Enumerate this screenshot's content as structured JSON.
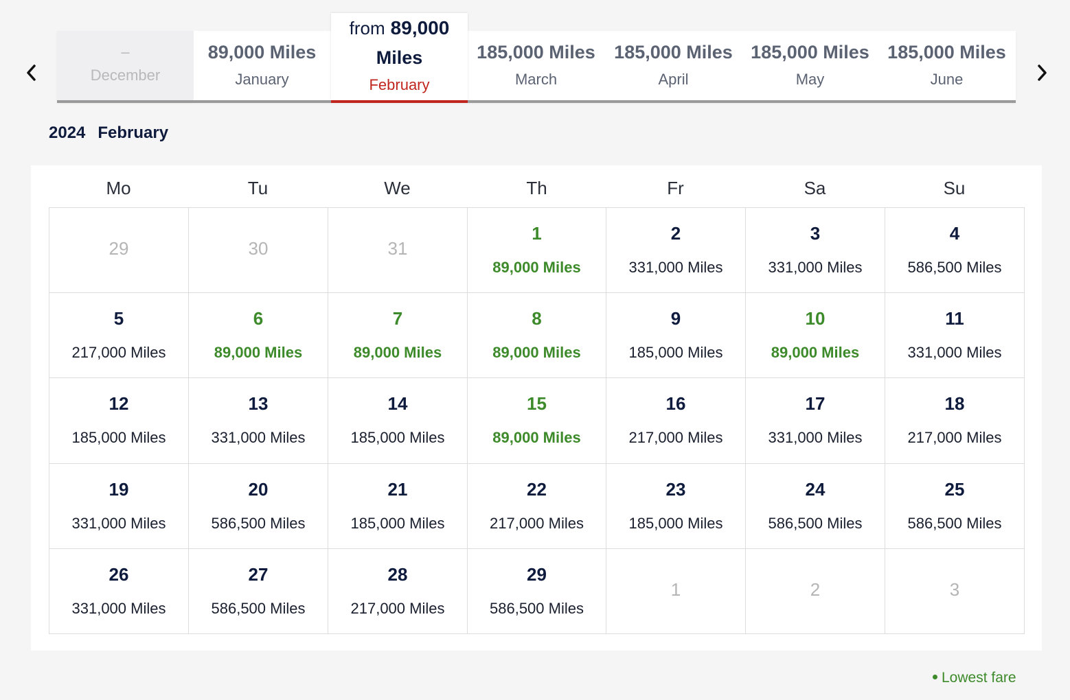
{
  "carousel": {
    "prev_icon": "chevron-left-icon",
    "next_icon": "chevron-right-icon",
    "months": [
      {
        "price": "–",
        "month": "December",
        "state": "disabled"
      },
      {
        "price": "89,000 Miles",
        "month": "January",
        "state": "normal"
      },
      {
        "prefix": "from",
        "price": "89,000",
        "unit": "Miles",
        "month": "February",
        "state": "selected"
      },
      {
        "price": "185,000 Miles",
        "month": "March",
        "state": "normal"
      },
      {
        "price": "185,000 Miles",
        "month": "April",
        "state": "normal"
      },
      {
        "price": "185,000 Miles",
        "month": "May",
        "state": "normal"
      },
      {
        "price": "185,000 Miles",
        "month": "June",
        "state": "normal"
      }
    ]
  },
  "heading": {
    "year": "2024",
    "month": "February"
  },
  "weekdays": [
    "Mo",
    "Tu",
    "We",
    "Th",
    "Fr",
    "Sa",
    "Su"
  ],
  "weeks": [
    [
      {
        "day": "29",
        "outside": true
      },
      {
        "day": "30",
        "outside": true
      },
      {
        "day": "31",
        "outside": true
      },
      {
        "day": "1",
        "fare": "89,000 Miles",
        "lowest": true
      },
      {
        "day": "2",
        "fare": "331,000 Miles"
      },
      {
        "day": "3",
        "fare": "331,000 Miles"
      },
      {
        "day": "4",
        "fare": "586,500 Miles"
      }
    ],
    [
      {
        "day": "5",
        "fare": "217,000 Miles"
      },
      {
        "day": "6",
        "fare": "89,000 Miles",
        "lowest": true
      },
      {
        "day": "7",
        "fare": "89,000 Miles",
        "lowest": true
      },
      {
        "day": "8",
        "fare": "89,000 Miles",
        "lowest": true
      },
      {
        "day": "9",
        "fare": "185,000 Miles"
      },
      {
        "day": "10",
        "fare": "89,000 Miles",
        "lowest": true
      },
      {
        "day": "11",
        "fare": "331,000 Miles"
      }
    ],
    [
      {
        "day": "12",
        "fare": "185,000 Miles"
      },
      {
        "day": "13",
        "fare": "331,000 Miles"
      },
      {
        "day": "14",
        "fare": "185,000 Miles"
      },
      {
        "day": "15",
        "fare": "89,000 Miles",
        "lowest": true
      },
      {
        "day": "16",
        "fare": "217,000 Miles"
      },
      {
        "day": "17",
        "fare": "331,000 Miles"
      },
      {
        "day": "18",
        "fare": "217,000 Miles"
      }
    ],
    [
      {
        "day": "19",
        "fare": "331,000 Miles"
      },
      {
        "day": "20",
        "fare": "586,500 Miles"
      },
      {
        "day": "21",
        "fare": "185,000 Miles"
      },
      {
        "day": "22",
        "fare": "217,000 Miles"
      },
      {
        "day": "23",
        "fare": "185,000 Miles"
      },
      {
        "day": "24",
        "fare": "586,500 Miles"
      },
      {
        "day": "25",
        "fare": "586,500 Miles"
      }
    ],
    [
      {
        "day": "26",
        "fare": "331,000 Miles"
      },
      {
        "day": "27",
        "fare": "586,500 Miles"
      },
      {
        "day": "28",
        "fare": "217,000 Miles"
      },
      {
        "day": "29",
        "fare": "586,500 Miles"
      },
      {
        "day": "1",
        "outside": true
      },
      {
        "day": "2",
        "outside": true
      },
      {
        "day": "3",
        "outside": true
      }
    ]
  ],
  "legend": {
    "label": "Lowest fare",
    "color": "#3d8a2a"
  },
  "colors": {
    "accent_red": "#c0261e",
    "lowest_green": "#3d8a2a",
    "navy": "#0f1b3d"
  }
}
